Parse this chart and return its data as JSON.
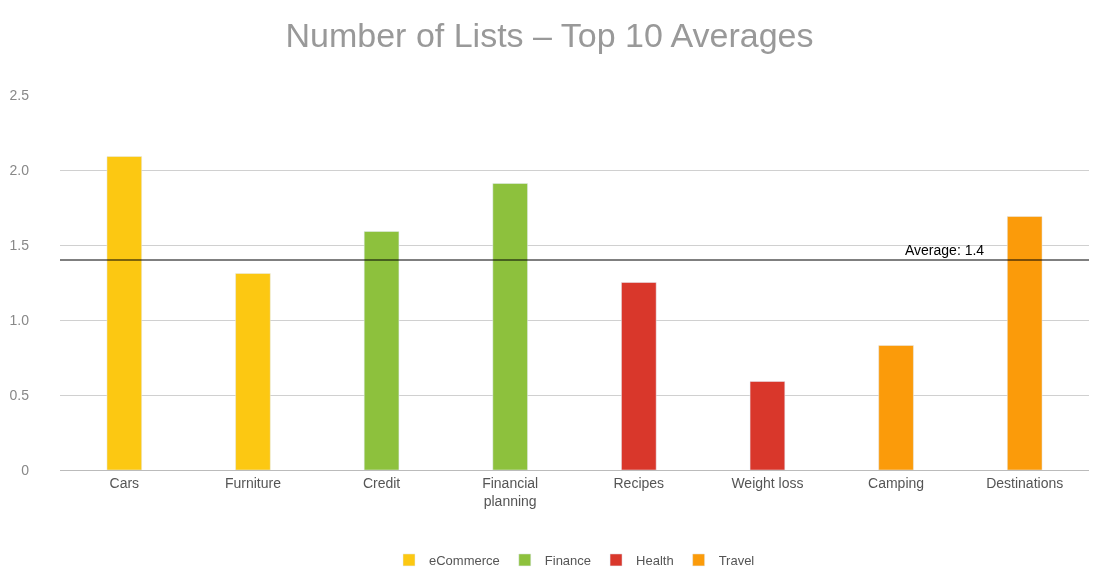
{
  "chart_data": {
    "type": "bar",
    "title": "Number of Lists – Top 10 Averages",
    "categories": [
      "Cars",
      "Furniture",
      "Credit",
      "Financial planning",
      "Recipes",
      "Weight loss",
      "Camping",
      "Destinations"
    ],
    "series": [
      {
        "name": "eCommerce",
        "color": "#fcc812",
        "values": [
          2.09,
          1.31,
          null,
          null,
          null,
          null,
          null,
          null
        ]
      },
      {
        "name": "Finance",
        "color": "#8dc13d",
        "values": [
          null,
          null,
          1.59,
          1.91,
          null,
          null,
          null,
          null
        ]
      },
      {
        "name": "Health",
        "color": "#d9372b",
        "values": [
          null,
          null,
          null,
          null,
          1.25,
          0.59,
          null,
          null
        ]
      },
      {
        "name": "Travel",
        "color": "#fb9b0a",
        "values": [
          null,
          null,
          null,
          null,
          null,
          null,
          0.83,
          1.69
        ]
      }
    ],
    "ylim": [
      0,
      2.5
    ],
    "yticks": [
      0,
      0.5,
      {
        "value": 1,
        "label": "1.0"
      },
      1.5,
      {
        "value": 2,
        "label": "2.0"
      },
      2.5
    ],
    "grid": "y",
    "legend": "bottom",
    "ref_lines": [
      {
        "axis": "y",
        "value": 1.4,
        "label": "Average: 1.4",
        "color": "#000000",
        "line_style": "solid"
      }
    ]
  }
}
